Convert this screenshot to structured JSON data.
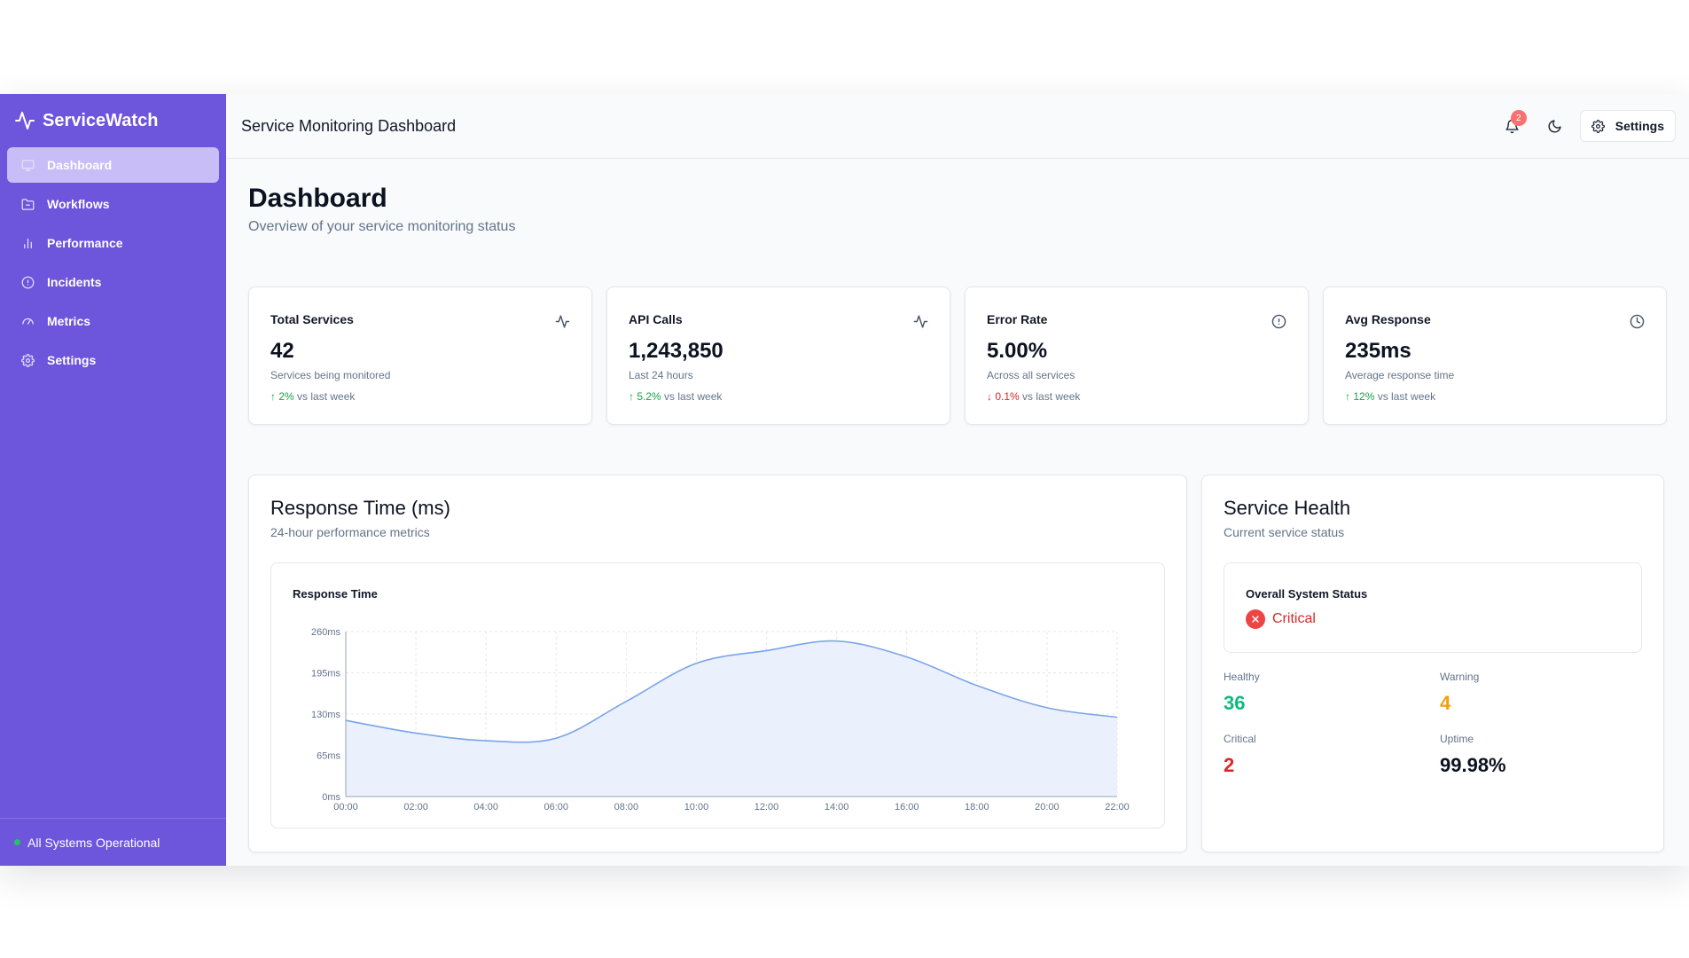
{
  "brand": {
    "name": "ServiceWatch",
    "icon": "activity-icon"
  },
  "sidebar": {
    "items": [
      {
        "label": "Dashboard",
        "icon": "monitor-icon",
        "active": true
      },
      {
        "label": "Workflows",
        "icon": "folder-icon",
        "active": false
      },
      {
        "label": "Performance",
        "icon": "bar-chart-icon",
        "active": false
      },
      {
        "label": "Incidents",
        "icon": "alert-circle-icon",
        "active": false
      },
      {
        "label": "Metrics",
        "icon": "gauge-icon",
        "active": false
      },
      {
        "label": "Settings",
        "icon": "gear-icon",
        "active": false
      }
    ],
    "status": "All Systems Operational"
  },
  "topbar": {
    "title": "Service Monitoring Dashboard",
    "notification_count": "2",
    "settings_label": "Settings"
  },
  "page": {
    "title": "Dashboard",
    "subtitle": "Overview of your service monitoring status"
  },
  "stats": [
    {
      "title": "Total Services",
      "value": "42",
      "desc": "Services being monitored",
      "trend_arrow": "↑",
      "trend_value": "2%",
      "trend_text": " vs last week",
      "trend_dir": "up",
      "icon": "activity-icon"
    },
    {
      "title": "API Calls",
      "value": "1,243,850",
      "desc": "Last 24 hours",
      "trend_arrow": "↑",
      "trend_value": "5.2%",
      "trend_text": " vs last week",
      "trend_dir": "up",
      "icon": "activity-icon"
    },
    {
      "title": "Error Rate",
      "value": "5.00%",
      "desc": "Across all services",
      "trend_arrow": "↓",
      "trend_value": "0.1%",
      "trend_text": " vs last week",
      "trend_dir": "down",
      "icon": "alert-circle-icon"
    },
    {
      "title": "Avg Response",
      "value": "235ms",
      "desc": "Average response time",
      "trend_arrow": "↑",
      "trend_value": "12%",
      "trend_text": " vs last week",
      "trend_dir": "up",
      "icon": "clock-icon"
    }
  ],
  "response_card": {
    "title": "Response Time (ms)",
    "subtitle": "24-hour performance metrics",
    "chart_label": "Response Time"
  },
  "chart_data": {
    "type": "area",
    "x": [
      "00:00",
      "02:00",
      "04:00",
      "06:00",
      "08:00",
      "10:00",
      "12:00",
      "14:00",
      "16:00",
      "18:00",
      "20:00",
      "22:00"
    ],
    "series": [
      {
        "name": "Response Time",
        "values": [
          120,
          100,
          88,
          92,
          150,
          210,
          230,
          245,
          220,
          175,
          140,
          125
        ]
      }
    ],
    "ylim": [
      0,
      260
    ],
    "yticks": [
      "0ms",
      "65ms",
      "130ms",
      "195ms",
      "260ms"
    ],
    "ytick_values": [
      0,
      65,
      130,
      195,
      260
    ],
    "grid": true,
    "line_color": "#7ba4e8",
    "fill_color": "#eaf1fd"
  },
  "health_card": {
    "title": "Service Health",
    "subtitle": "Current service status",
    "overall_label": "Overall System Status",
    "overall_value": "Critical",
    "healthy_label": "Healthy",
    "healthy_value": "36",
    "warning_label": "Warning",
    "warning_value": "4",
    "critical_label": "Critical",
    "critical_value": "2",
    "uptime_label": "Uptime",
    "uptime_value": "99.98%"
  },
  "colors": {
    "sidebar": "#6d55dc",
    "healthy": "#10b981",
    "warning": "#f59e0b",
    "critical": "#dc2626",
    "up": "#16a34a",
    "down": "#dc2626"
  }
}
